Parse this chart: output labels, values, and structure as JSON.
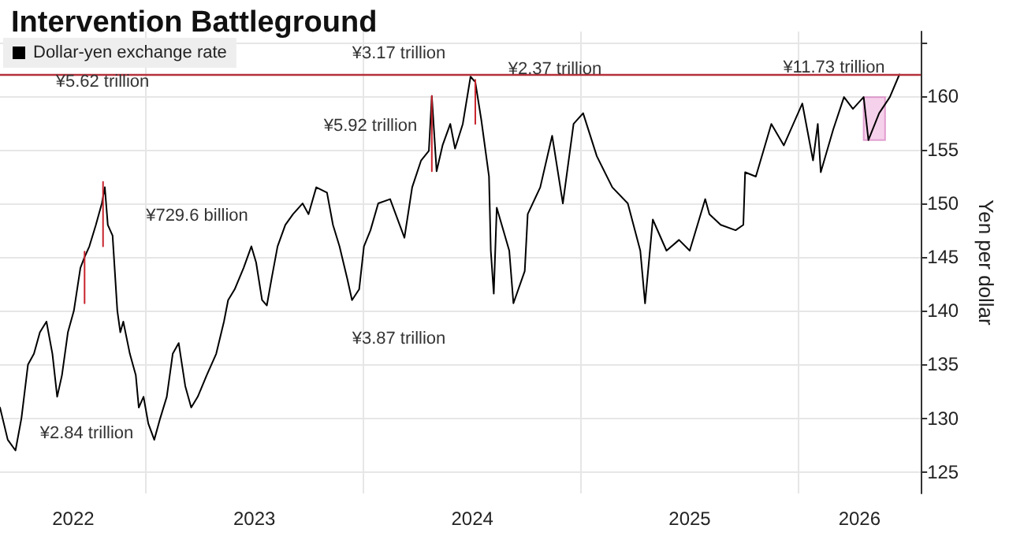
{
  "chart_data": {
    "type": "line",
    "title": "Intervention Battleground",
    "ylabel": "Yen per dollar",
    "xlim": [
      "2022-05-01",
      "2026-07-25"
    ],
    "xticks": [
      {
        "value": "2022-09-01",
        "label": "2022"
      },
      {
        "value": "2023-01-01",
        "label": null
      },
      {
        "value": "2023-07-02",
        "label": "2023"
      },
      {
        "value": "2024-01-01",
        "label": null
      },
      {
        "value": "2024-07-02",
        "label": "2024"
      },
      {
        "value": "2025-01-01",
        "label": null
      },
      {
        "value": "2025-07-02",
        "label": "2025"
      },
      {
        "value": "2026-01-01",
        "label": null
      },
      {
        "value": "2026-04-13",
        "label": "2026"
      }
    ],
    "ylim": [
      123,
      166
    ],
    "yticks": [
      125,
      130,
      135,
      140,
      145,
      150,
      155,
      160,
      {
        "value": 165,
        "label": null
      }
    ],
    "grid": true,
    "legend": "top left",
    "marker": "none",
    "line_style": "solid",
    "series": [
      {
        "name": "Dollar-yen exchange rate",
        "color": "#000000",
        "x": [
          "2022-05-01",
          "2022-05-14",
          "2022-05-27",
          "2022-06-06",
          "2022-06-17",
          "2022-06-27",
          "2022-07-07",
          "2022-07-18",
          "2022-07-28",
          "2022-08-05",
          "2022-08-13",
          "2022-08-23",
          "2022-09-02",
          "2022-09-13",
          "2022-09-20",
          "2022-09-28",
          "2022-10-09",
          "2022-10-19",
          "2022-10-24",
          "2022-10-29",
          "2022-11-06",
          "2022-11-14",
          "2022-11-19",
          "2022-11-24",
          "2022-12-05",
          "2022-12-15",
          "2022-12-20",
          "2022-12-28",
          "2023-01-05",
          "2023-01-15",
          "2023-01-25",
          "2023-02-05",
          "2023-02-15",
          "2023-02-25",
          "2023-03-08",
          "2023-03-18",
          "2023-03-29",
          "2023-04-13",
          "2023-04-29",
          "2023-05-12",
          "2023-05-19",
          "2023-05-30",
          "2023-06-14",
          "2023-06-27",
          "2023-07-05",
          "2023-07-15",
          "2023-07-23",
          "2023-07-31",
          "2023-08-10",
          "2023-08-23",
          "2023-09-05",
          "2023-09-21",
          "2023-10-01",
          "2023-10-14",
          "2023-11-01",
          "2023-11-11",
          "2023-11-22",
          "2023-12-05",
          "2023-12-13",
          "2023-12-25",
          "2024-01-02",
          "2024-01-13",
          "2024-01-26",
          "2024-02-15",
          "2024-03-10",
          "2024-03-23",
          "2024-04-07",
          "2024-04-20",
          "2024-04-25",
          "2024-05-03",
          "2024-05-13",
          "2024-05-26",
          "2024-06-03",
          "2024-06-16",
          "2024-06-29",
          "2024-07-07",
          "2024-07-17",
          "2024-07-30",
          "2024-08-02",
          "2024-08-07",
          "2024-08-12",
          "2024-09-02",
          "2024-09-09",
          "2024-09-28",
          "2024-10-03",
          "2024-10-24",
          "2024-11-13",
          "2024-12-01",
          "2024-12-19",
          "2025-01-04",
          "2025-01-27",
          "2025-02-22",
          "2025-03-20",
          "2025-04-10",
          "2025-04-18",
          "2025-05-01",
          "2025-05-24",
          "2025-06-14",
          "2025-07-02",
          "2025-07-28",
          "2025-08-04",
          "2025-08-23",
          "2025-09-17",
          "2025-09-30",
          "2025-10-03",
          "2025-10-21",
          "2025-11-16",
          "2025-12-07",
          "2026-01-07",
          "2026-01-25",
          "2026-02-02",
          "2026-02-07",
          "2026-02-28",
          "2026-03-18",
          "2026-04-02",
          "2026-04-20",
          "2026-04-28",
          "2026-05-16",
          "2026-06-03",
          "2026-06-19"
        ],
        "values": [
          131,
          128,
          127,
          130,
          135,
          136,
          138,
          139,
          136,
          132,
          134,
          138,
          140,
          144,
          145,
          146,
          148,
          150,
          151.5,
          148,
          147,
          140,
          138,
          139,
          136,
          134,
          131,
          132,
          129.5,
          128,
          130,
          132,
          136,
          137,
          133,
          131,
          132,
          134,
          136,
          139,
          141,
          142,
          144,
          146,
          144.5,
          141,
          140.5,
          143,
          146,
          148,
          149,
          150,
          149,
          151.5,
          151,
          148,
          146,
          143,
          141,
          142,
          146,
          147.5,
          150,
          150.4,
          146.8,
          151.5,
          154,
          154.9,
          160,
          153,
          155.4,
          157.4,
          155.1,
          157.4,
          161.8,
          161.3,
          157.8,
          152.5,
          145.6,
          141.6,
          149.6,
          145.6,
          140.7,
          143.7,
          149,
          151.5,
          156.3,
          150,
          157.4,
          158.4,
          154.4,
          151.5,
          150,
          145.6,
          140.7,
          148.5,
          145.6,
          146.6,
          145.6,
          150.4,
          149,
          148,
          147.5,
          148,
          152.9,
          152.5,
          157.4,
          155.4,
          159.3,
          154,
          157.4,
          152.9,
          156.9,
          159.9,
          158.8,
          159.9,
          155.9,
          158.4,
          159.9,
          162
        ]
      },
      {
        "color": "#c8232c",
        "x": [
          "2022-09-20",
          "2022-09-20"
        ],
        "values": [
          145.5,
          140.7
        ]
      },
      {
        "color": "#c8232c",
        "x": [
          "2022-10-21",
          "2022-10-21"
        ],
        "values": [
          152,
          146
        ]
      },
      {
        "color": "#c8232c",
        "x": [
          "2024-04-25",
          "2024-04-25"
        ],
        "values": [
          160,
          153
        ]
      },
      {
        "color": "#c8232c",
        "x": [
          "2024-07-07",
          "2024-07-07"
        ],
        "values": [
          161.5,
          157.4
        ]
      }
    ],
    "ref_lines": [
      {
        "axis": "y",
        "value": 162,
        "color": "#b5303a"
      }
    ],
    "bands": [
      {
        "axis": "x",
        "from": "2026-04-20",
        "to": "2026-05-26",
        "color": "#f2bde3"
      }
    ],
    "annotations": [
      "¥5.62 trillion",
      "¥729.6 billion",
      "¥2.84 trillion",
      "¥3.17 trillion",
      "¥2.37 trillion",
      "¥5.92 trillion",
      "¥3.87 trillion",
      "¥11.73 trillion"
    ]
  }
}
